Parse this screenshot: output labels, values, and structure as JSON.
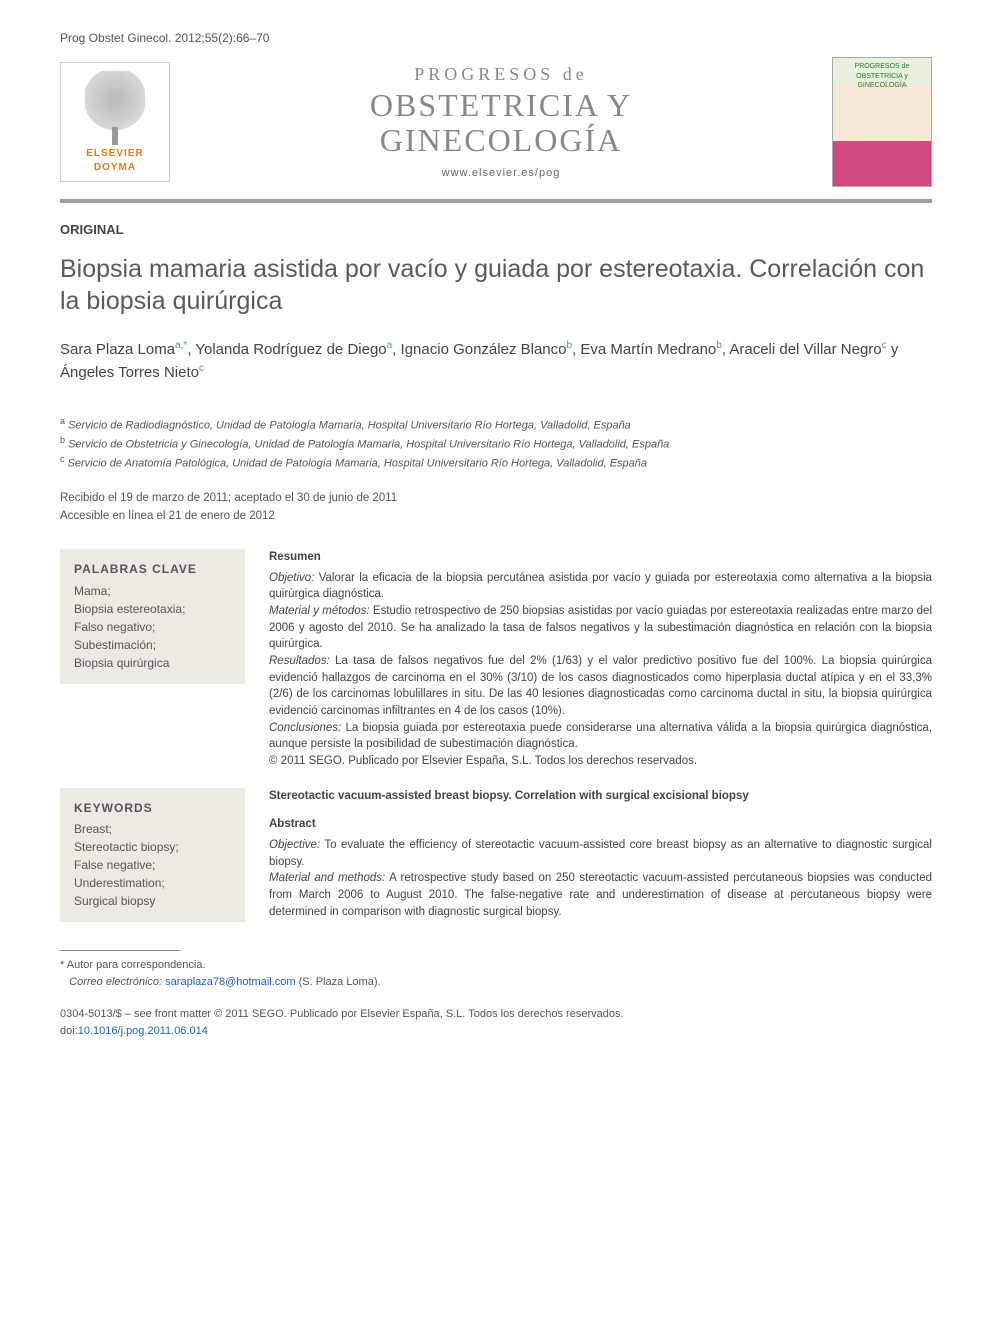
{
  "citation": "Prog Obstet Ginecol. 2012;55(2):66–70",
  "publisher_logo": {
    "line1": "ELSEVIER",
    "line2": "DOYMA"
  },
  "journal": {
    "prefix": "PROGRESOS de",
    "title_line1": "OBSTETRICIA Y",
    "title_line2": "GINECOLOGÍA",
    "url": "www.elsevier.es/pog",
    "cover_text": "PROGRESOS de OBSTETRICIA y GINECOLOGÍA"
  },
  "section_label": "ORIGINAL",
  "title": "Biopsia mamaria asistida por vacío y guiada por estereotaxia. Correlación con la biopsia quirúrgica",
  "authors_html": "Sara Plaza Loma<sup>a,*</sup>, Yolanda Rodríguez de Diego<sup>a</sup>, Ignacio González Blanco<sup>b</sup>, Eva Martín Medrano<sup>b</sup>, Araceli del Villar Negro<sup>c</sup> y Ángeles Torres Nieto<sup>c</sup>",
  "affiliations": [
    {
      "sup": "a",
      "text": "Servicio de Radiodiagnóstico, Unidad de Patología Mamaria, Hospital Universitario Río Hortega, Valladolid, España"
    },
    {
      "sup": "b",
      "text": "Servicio de Obstetricia y Ginecología, Unidad de Patología Mamaria, Hospital Universitario Río Hortega, Valladolid, España"
    },
    {
      "sup": "c",
      "text": "Servicio de Anatomía Patológica, Unidad de Patología Mamaria, Hospital Universitario Río Hortega, Valladolid, España"
    }
  ],
  "dates": {
    "received_accepted": "Recibido el 19 de marzo de 2011; aceptado el 30 de junio de 2011",
    "online": "Accesible en línea el 21 de enero de 2012"
  },
  "palabras_clave": {
    "head": "PALABRAS CLAVE",
    "items": [
      "Mama;",
      "Biopsia estereotaxia;",
      "Falso negativo;",
      "Subestimación;",
      "Biopsia quirúrgica"
    ]
  },
  "resumen": {
    "head": "Resumen",
    "objetivo_label": "Objetivo:",
    "objetivo": "Valorar la eficacia de la biopsia percutánea asistida por vacío y guiada por estereotaxia como alternativa a la biopsia quirúrgica diagnóstica.",
    "material_label": "Material y métodos:",
    "material": "Estudio retrospectivo de 250 biopsias asistidas por vacío guiadas por estereotaxia realizadas entre marzo del 2006 y agosto del 2010. Se ha analizado la tasa de falsos negativos y la subestimación diagnóstica en relación con la biopsia quirúrgica.",
    "resultados_label": "Resultados:",
    "resultados": "La tasa de falsos negativos fue del 2% (1/63) y el valor predictivo positivo fue del 100%. La biopsia quirúrgica evidenció hallazgos de carcinoma en el 30% (3/10) de los casos diagnosticados como hiperplasia ductal atípica y en el 33,3% (2/6) de los carcinomas lobulillares in situ. De las 40 lesiones diagnosticadas como carcinoma ductal in situ, la biopsia quirúrgica evidenció carcinomas infiltrantes en 4 de los casos (10%).",
    "conclusiones_label": "Conclusiones:",
    "conclusiones": "La biopsia guiada por estereotaxia puede considerarse una alternativa válida a la biopsia quirúrgica diagnóstica, aunque persiste la posibilidad de subestimación diagnóstica.",
    "copyright": "© 2011 SEGO. Publicado por Elsevier España, S.L. Todos los derechos reservados."
  },
  "keywords_en": {
    "head": "KEYWORDS",
    "items": [
      "Breast;",
      "Stereotactic biopsy;",
      "False negative;",
      "Underestimation;",
      "Surgical biopsy"
    ]
  },
  "abstract_en": {
    "title": "Stereotactic vacuum-assisted breast biopsy. Correlation with surgical excisional biopsy",
    "head": "Abstract",
    "objective_label": "Objective:",
    "objective": "To evaluate the efficiency of stereotactic vacuum-assisted core breast biopsy as an alternative to diagnostic surgical biopsy.",
    "material_label": "Material and methods:",
    "material": "A retrospective study based on 250 stereotactic vacuum-assisted percutaneous biopsies was conducted from March 2006 to August 2010. The false-negative rate and underestimation of disease at percutaneous biopsy were determined in comparison with diagnostic surgical biopsy."
  },
  "footnotes": {
    "corr_label": "* Autor para correspondencia.",
    "email_label": "Correo electrónico:",
    "email": "saraplaza78@hotmail.com",
    "email_suffix": "(S. Plaza Loma)."
  },
  "footer": {
    "issn_line": "0304-5013/$ – see front matter © 2011 SEGO. Publicado por Elsevier España, S.L. Todos los derechos reservados.",
    "doi_prefix": "doi:",
    "doi": "10.1016/j.pog.2011.06.014"
  },
  "colors": {
    "rule": "#a0a0a0",
    "kw_bg": "#eceae3",
    "link": "#2060c0",
    "logo_orange": "#e67817"
  }
}
